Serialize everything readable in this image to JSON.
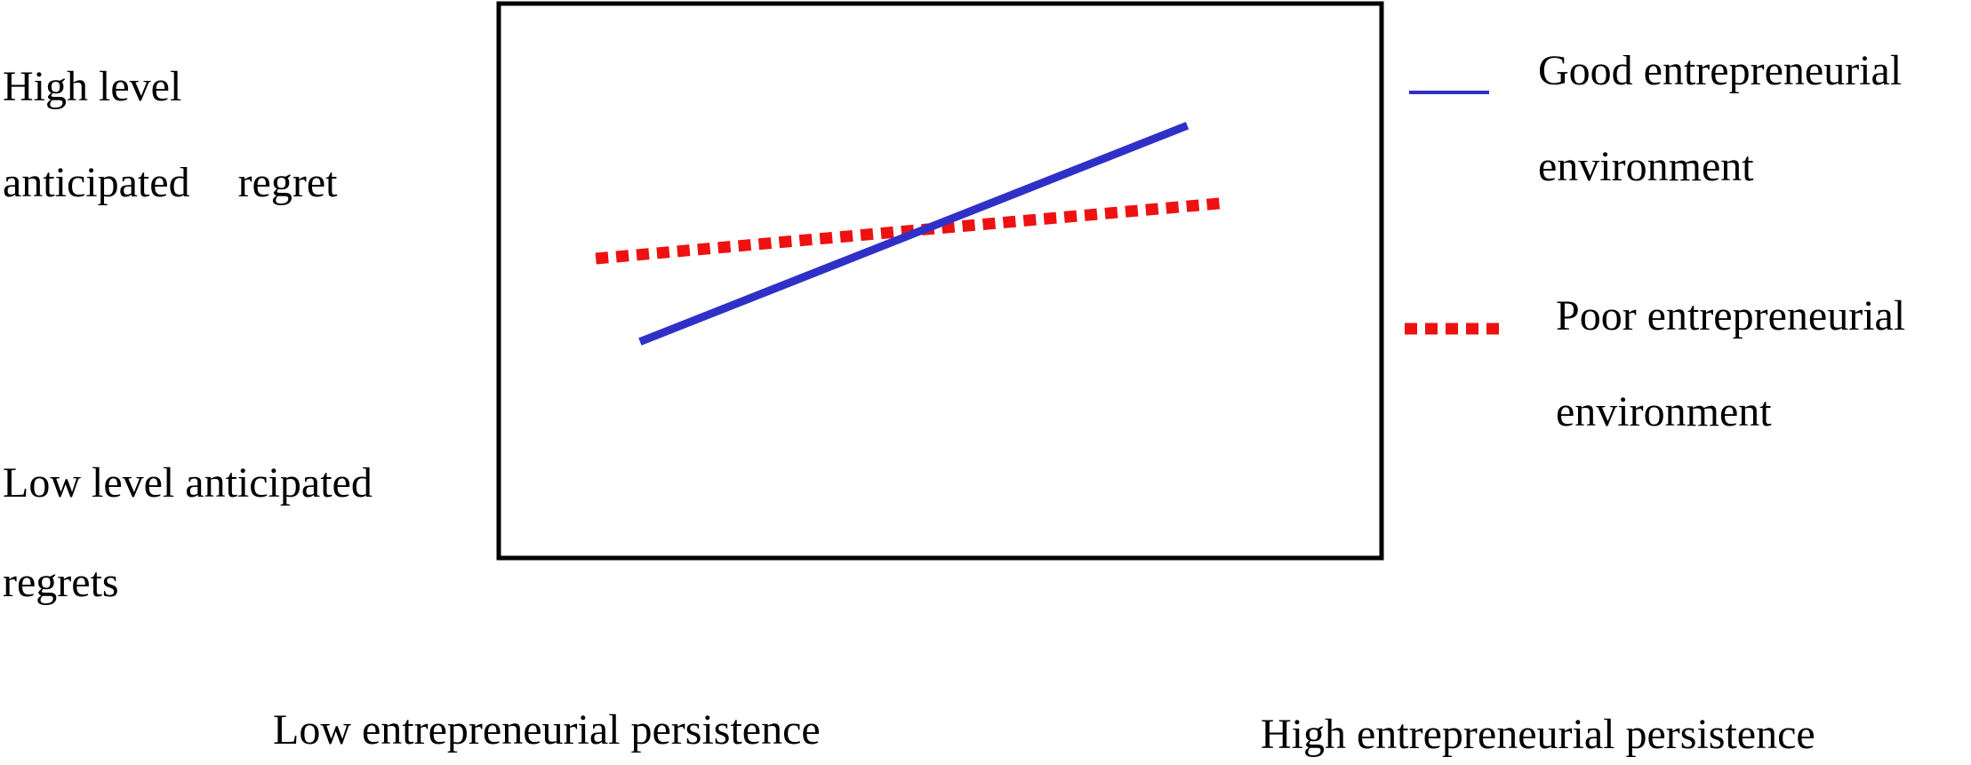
{
  "chart_data": {
    "type": "line",
    "y_axis": {
      "high_label_line1": "High level",
      "high_label_line2a": "anticipated",
      "high_label_line2b": "regret",
      "low_label_line1": "Low level anticipated",
      "low_label_line2": "regrets",
      "ylim": [
        0,
        100
      ],
      "grid": false
    },
    "x_axis": {
      "low_label": "Low entrepreneurial persistence",
      "high_label": "High entrepreneurial persistence",
      "xlim": [
        0,
        100
      ],
      "grid": false
    },
    "legend": {
      "placement": "right",
      "entries": [
        {
          "line1": "Good entrepreneurial",
          "line2": "environment",
          "color": "#3030c8",
          "style": "solid"
        },
        {
          "line1": "Poor entrepreneurial",
          "line2": "environment",
          "color": "#ee1111",
          "style": "dashed"
        }
      ]
    },
    "series": [
      {
        "key": "good",
        "color": "#3030c8",
        "style": "solid",
        "x": [
          16,
          78
        ],
        "y": [
          39,
          78
        ]
      },
      {
        "key": "poor",
        "color": "#ee1111",
        "style": "dashed",
        "x": [
          11,
          82
        ],
        "y": [
          54,
          64
        ]
      }
    ]
  }
}
